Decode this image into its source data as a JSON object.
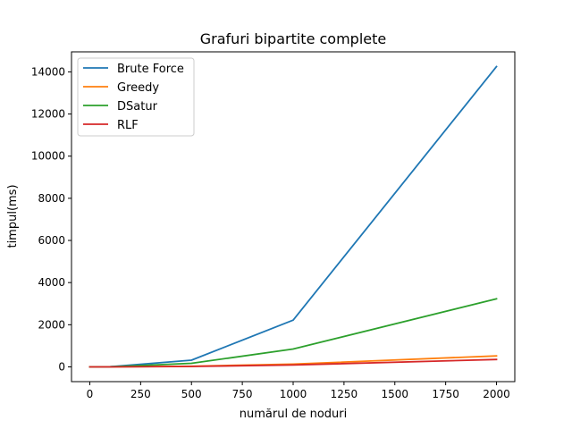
{
  "chart_data": {
    "type": "line",
    "title": "Grafuri bipartite complete",
    "xlabel": "numărul de noduri",
    "ylabel": "timpul(ms)",
    "xlim": [
      -90,
      2090
    ],
    "ylim": [
      -700,
      14950
    ],
    "x_ticks": [
      0,
      250,
      500,
      750,
      1000,
      1250,
      1500,
      1750,
      2000
    ],
    "y_ticks": [
      0,
      2000,
      4000,
      6000,
      8000,
      10000,
      12000,
      14000
    ],
    "grid": false,
    "legend_position": "top-left",
    "series": [
      {
        "name": "Brute Force",
        "color": "#1f77b4",
        "x": [
          0,
          100,
          500,
          1000,
          2000
        ],
        "y": [
          0,
          10,
          320,
          2220,
          14250
        ]
      },
      {
        "name": "Greedy",
        "color": "#ff7f0e",
        "x": [
          0,
          100,
          500,
          1000,
          2000
        ],
        "y": [
          0,
          2,
          30,
          130,
          520
        ]
      },
      {
        "name": "DSatur",
        "color": "#2ca02c",
        "x": [
          0,
          100,
          500,
          1000,
          2000
        ],
        "y": [
          0,
          5,
          170,
          850,
          3230
        ]
      },
      {
        "name": "RLF",
        "color": "#d62728",
        "x": [
          0,
          100,
          500,
          1000,
          2000
        ],
        "y": [
          0,
          1,
          20,
          90,
          350
        ]
      }
    ]
  }
}
